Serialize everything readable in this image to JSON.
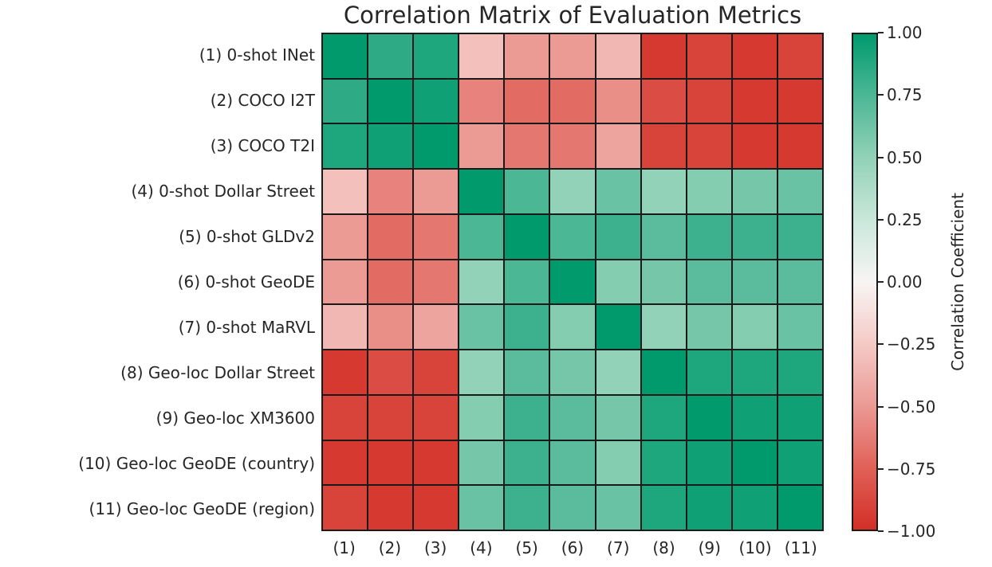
{
  "figure": {
    "background": "#ffffff",
    "text_color": "#262626"
  },
  "chart_data": {
    "type": "heatmap",
    "title": "Correlation Matrix of Evaluation Metrics",
    "rows": [
      "(1) 0-shot INet",
      "(2) COCO I2T",
      "(3) COCO T2I",
      "(4) 0-shot Dollar Street",
      "(5) 0-shot GLDv2",
      "(6) 0-shot GeoDE",
      "(7) 0-shot MaRVL",
      "(8) Geo-loc Dollar Street",
      "(9) Geo-loc XM3600",
      "(10) Geo-loc GeoDE (country)",
      "(11) Geo-loc GeoDE (region)"
    ],
    "columns": [
      "(1)",
      "(2)",
      "(3)",
      "(4)",
      "(5)",
      "(6)",
      "(7)",
      "(8)",
      "(9)",
      "(10)",
      "(11)"
    ],
    "matrix": [
      [
        1.0,
        0.85,
        0.9,
        -0.3,
        -0.5,
        -0.5,
        -0.35,
        -0.95,
        -0.9,
        -0.95,
        -0.9
      ],
      [
        0.85,
        1.0,
        0.95,
        -0.6,
        -0.7,
        -0.7,
        -0.55,
        -0.85,
        -0.9,
        -0.95,
        -0.95
      ],
      [
        0.9,
        0.95,
        1.0,
        -0.5,
        -0.65,
        -0.65,
        -0.45,
        -0.9,
        -0.9,
        -0.95,
        -0.95
      ],
      [
        -0.3,
        -0.6,
        -0.5,
        1.0,
        0.75,
        0.5,
        0.65,
        0.5,
        0.55,
        0.6,
        0.65
      ],
      [
        -0.5,
        -0.7,
        -0.65,
        0.75,
        1.0,
        0.75,
        0.8,
        0.7,
        0.8,
        0.8,
        0.8
      ],
      [
        -0.5,
        -0.7,
        -0.65,
        0.5,
        0.75,
        1.0,
        0.55,
        0.6,
        0.7,
        0.7,
        0.7
      ],
      [
        -0.35,
        -0.55,
        -0.45,
        0.65,
        0.8,
        0.55,
        1.0,
        0.5,
        0.6,
        0.55,
        0.65
      ],
      [
        -0.95,
        -0.85,
        -0.9,
        0.5,
        0.7,
        0.6,
        0.5,
        1.0,
        0.9,
        0.9,
        0.9
      ],
      [
        -0.9,
        -0.9,
        -0.9,
        0.55,
        0.8,
        0.7,
        0.6,
        0.9,
        1.0,
        0.95,
        0.95
      ],
      [
        -0.95,
        -0.95,
        -0.95,
        0.6,
        0.8,
        0.7,
        0.55,
        0.9,
        0.95,
        1.0,
        0.95
      ],
      [
        -0.9,
        -0.95,
        -0.95,
        0.65,
        0.8,
        0.7,
        0.65,
        0.9,
        0.95,
        0.95,
        1.0
      ]
    ],
    "value_range": [
      -1,
      1
    ],
    "grid_line_color": "#1a1a1a",
    "colormap_stops": [
      {
        "value": -1.0,
        "color": "#d32f26"
      },
      {
        "value": -0.75,
        "color": "#e06158"
      },
      {
        "value": -0.5,
        "color": "#eb9a94"
      },
      {
        "value": -0.25,
        "color": "#f5cac6"
      },
      {
        "value": 0.0,
        "color": "#f8f5f4"
      },
      {
        "value": 0.25,
        "color": "#c9e7da"
      },
      {
        "value": 0.5,
        "color": "#92d2b8"
      },
      {
        "value": 0.75,
        "color": "#4cb795"
      },
      {
        "value": 1.0,
        "color": "#009a6d"
      }
    ],
    "colorbar": {
      "label": "Correlation Coefficient",
      "tick_labels": [
        "1.00",
        "0.75",
        "0.50",
        "0.25",
        "0.00",
        "−0.25",
        "−0.50",
        "−0.75",
        "−1.00"
      ]
    }
  }
}
